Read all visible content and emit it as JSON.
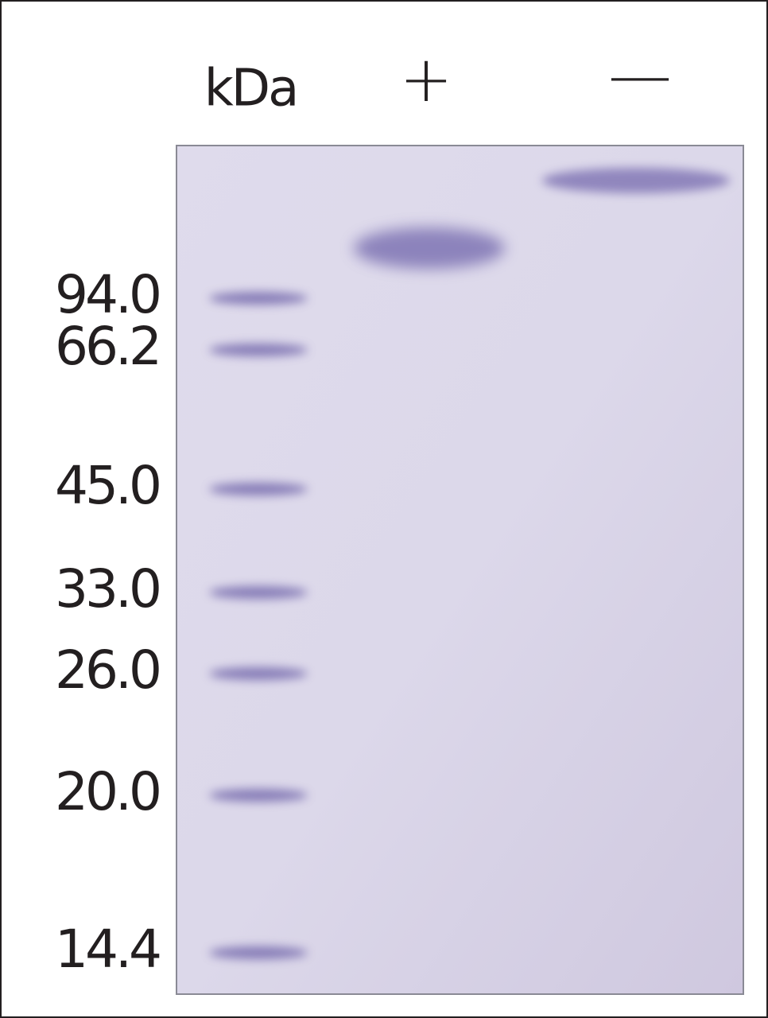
{
  "header": {
    "unit": "kDa",
    "lanes": [
      "+",
      "—"
    ]
  },
  "markers": [
    "94.0",
    "66.2",
    "45.0",
    "33.0",
    "26.0",
    "20.0",
    "14.4"
  ]
}
